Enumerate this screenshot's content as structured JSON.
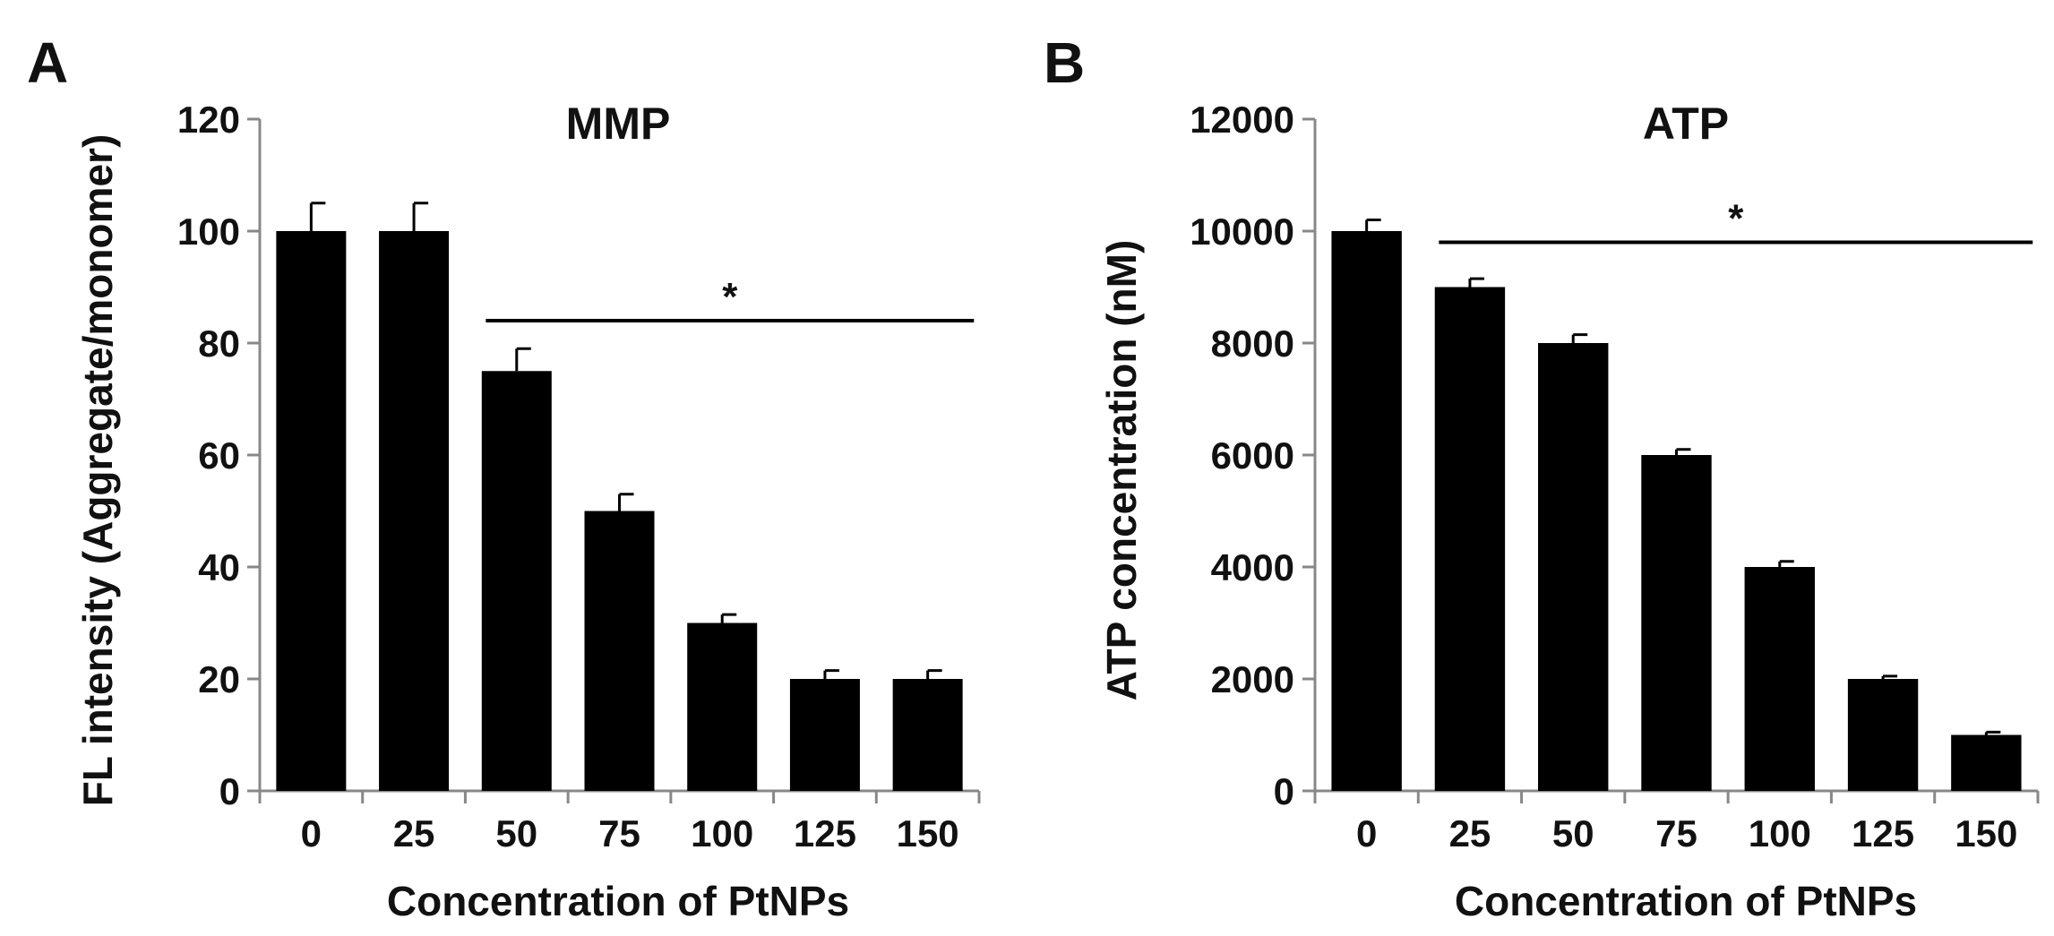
{
  "figure": {
    "panels": [
      "A",
      "B"
    ]
  },
  "chart_data": [
    {
      "type": "bar",
      "panel": "A",
      "title": "MMP",
      "xlabel": "Concentration of PtNPs",
      "ylabel": "FL intensity (Aggregate/monomer)",
      "categories": [
        "0",
        "25",
        "50",
        "75",
        "100",
        "125",
        "150"
      ],
      "values": [
        100,
        100,
        75,
        50,
        30,
        20,
        20
      ],
      "errors": [
        5,
        5,
        4,
        3,
        1.5,
        1.5,
        1.5
      ],
      "ylim": [
        0,
        120
      ],
      "yticks": [
        0,
        20,
        40,
        60,
        80,
        100,
        120
      ],
      "ytick_labels": [
        "0",
        "20",
        "40",
        "60",
        "80",
        "100",
        "120"
      ],
      "bar_color": "#000000",
      "grid": false,
      "significance": {
        "label": "*",
        "from_category": 2,
        "to_category": 6,
        "y": 84
      }
    },
    {
      "type": "bar",
      "panel": "B",
      "title": "ATP",
      "xlabel": "Concentration of PtNPs",
      "ylabel": "ATP concentration (nM)",
      "categories": [
        "0",
        "25",
        "50",
        "75",
        "100",
        "125",
        "150"
      ],
      "values": [
        10000,
        9000,
        8000,
        6000,
        4000,
        2000,
        1000
      ],
      "errors": [
        200,
        150,
        150,
        100,
        100,
        50,
        50
      ],
      "ylim": [
        0,
        12000
      ],
      "yticks": [
        0,
        2000,
        4000,
        6000,
        8000,
        10000,
        12000
      ],
      "ytick_labels": [
        "0",
        "2000",
        "4000",
        "6000",
        "8000",
        "10000",
        "12000"
      ],
      "bar_color": "#000000",
      "grid": false,
      "significance": {
        "label": "*",
        "from_category": 1,
        "to_category": 6,
        "y": 9800
      }
    }
  ]
}
